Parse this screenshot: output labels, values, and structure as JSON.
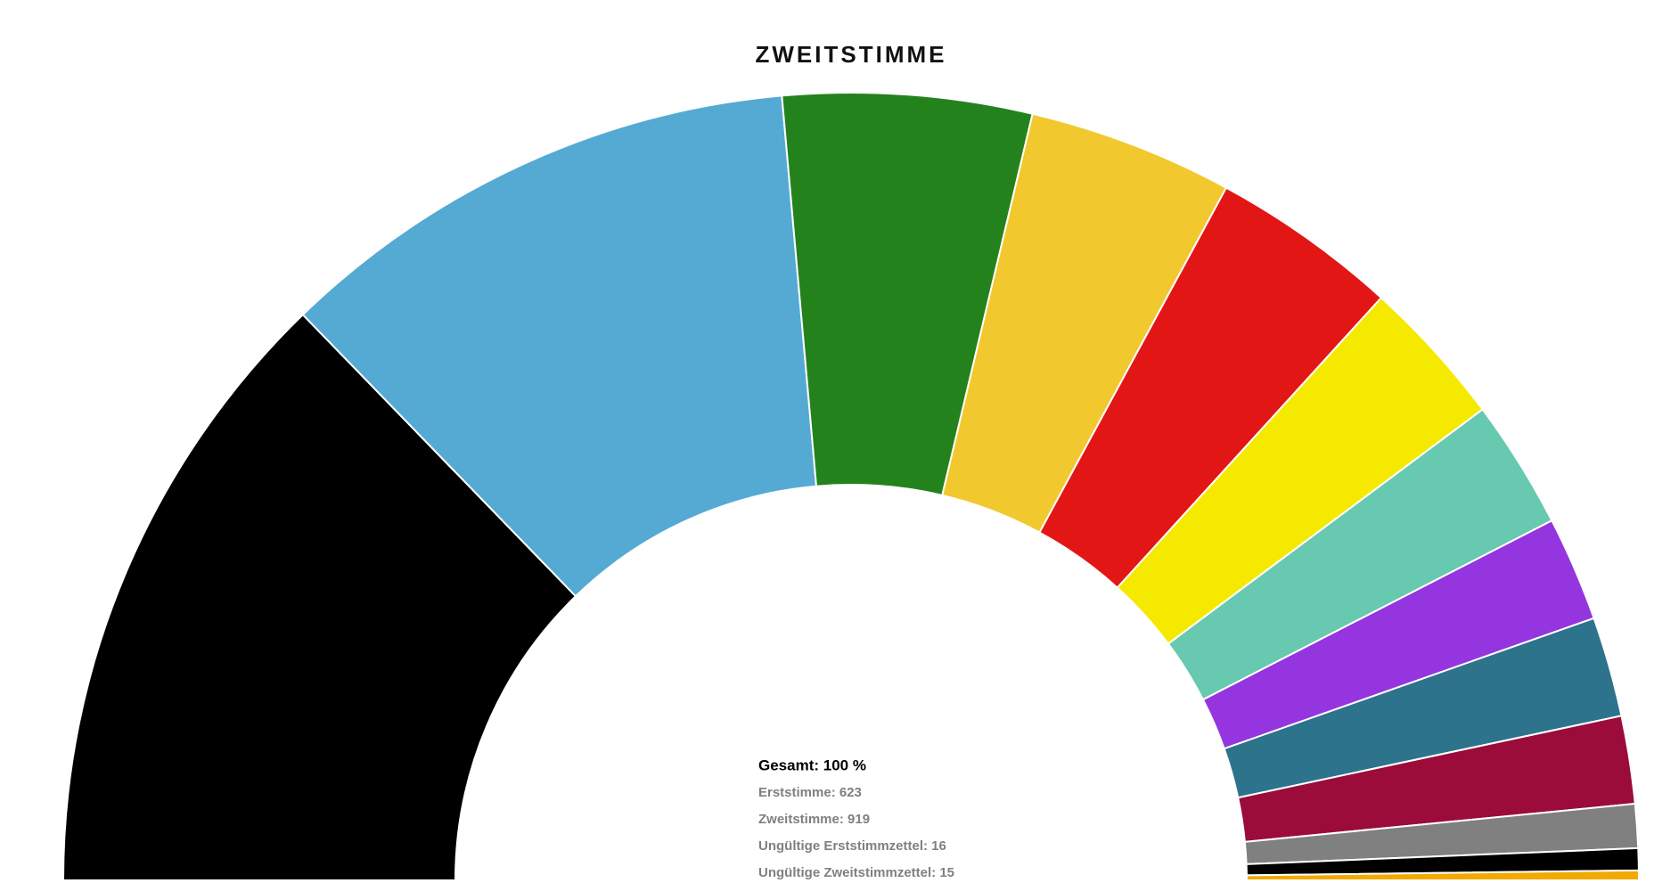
{
  "chart_data": {
    "type": "semi-donut",
    "title": "ZWEITSTIMME",
    "values": [
      25.5,
      21.7,
      10.2,
      8.4,
      7.7,
      6.1,
      5.3,
      4.3,
      4.1,
      3.6,
      1.8,
      0.9,
      0.4
    ],
    "colors": [
      "#000000",
      "#54aad3",
      "#24821c",
      "#f2c82f",
      "#e31616",
      "#f6e900",
      "#66c9b0",
      "#9535e0",
      "#2d738c",
      "#9b0c3a",
      "#808080",
      "#000000",
      "#f2a900"
    ],
    "annotations": [
      "Gesamt: 100 %",
      "Erststimme: 623",
      "Zweitstimme: 919",
      "Ungültige Erststimmzettel: 16",
      "Ungültige Zweitstimmzettel: 15"
    ]
  }
}
